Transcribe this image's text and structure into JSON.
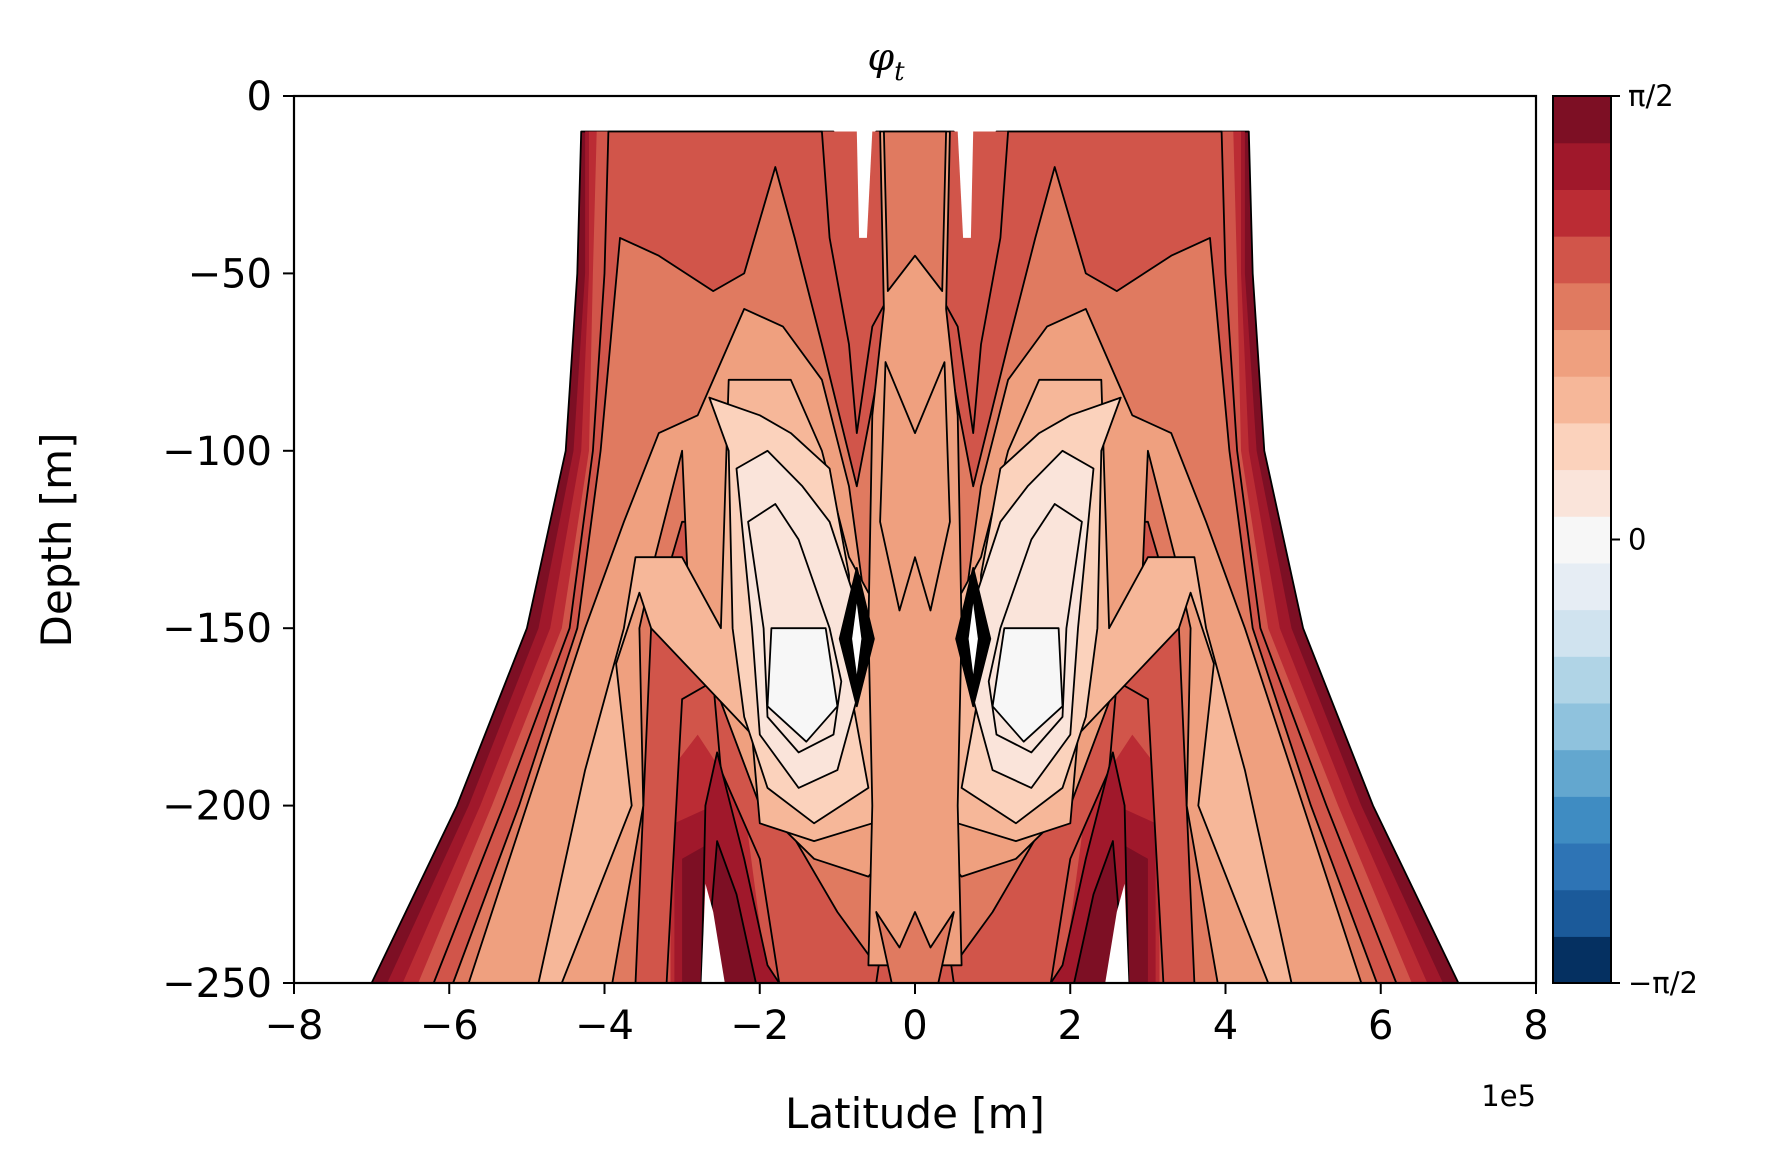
{
  "chart_data": {
    "type": "contour",
    "title": "φ_t",
    "title_main": "φ",
    "title_sub": "t",
    "xlabel": "Latitude [m]",
    "ylabel": "Depth [m]",
    "x_offset_label": "1e5",
    "xlim": [
      -8,
      8
    ],
    "ylim": [
      -250,
      0
    ],
    "x_ticks": [
      -8,
      -6,
      -4,
      -2,
      0,
      2,
      4,
      6,
      8
    ],
    "x_tick_labels": [
      "−8",
      "−6",
      "−4",
      "−2",
      "0",
      "2",
      "4",
      "6",
      "8"
    ],
    "y_ticks": [
      0,
      -50,
      -100,
      -150,
      -200,
      -250
    ],
    "y_tick_labels": [
      "0",
      "−50",
      "−100",
      "−150",
      "−200",
      "−250"
    ],
    "grid": false,
    "colorbar": {
      "ticks": [
        "π/2",
        "0",
        "−π/2"
      ],
      "tick_values": [
        1.5708,
        0,
        -1.5708
      ],
      "colormap": "RdBu_r",
      "levels": 19,
      "colors": [
        "#053061",
        "#1b5a9a",
        "#2e74b5",
        "#3f8cc2",
        "#63a7cf",
        "#8fc2dd",
        "#b0d4e6",
        "#d0e3ef",
        "#e6edf4",
        "#f7f7f7",
        "#fae4da",
        "#fbd2bc",
        "#f6b799",
        "#efa07f",
        "#e07a60",
        "#d1554a",
        "#bb2c34",
        "#a0182b",
        "#7d0f24"
      ]
    },
    "field_summary": {
      "note": "Symmetric about latitude 0; phase values range between 0 and π/2 within the domain, blank (masked) outside.",
      "band_phase_levels": [
        "#7d0f24",
        "#a0182b",
        "#bb2c34",
        "#d1554a",
        "#e07a60",
        "#efa07f",
        "#f6b799",
        "#fbd2bc",
        "#fae4da",
        "#f7f7f7"
      ]
    }
  },
  "colors": {
    "background": "#ffffff",
    "contour_line": "#000000"
  }
}
